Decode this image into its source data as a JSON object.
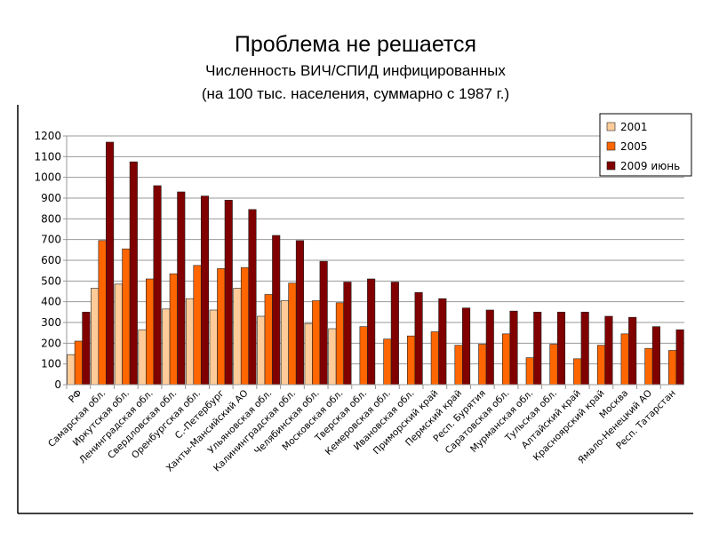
{
  "chart_data": {
    "type": "bar",
    "title": "Проблема не решается",
    "subtitle_line1": "Численность ВИЧ/СПИД инфицированных",
    "subtitle_line2": "(на 100 тыс. населения, суммарно с 1987 г.)",
    "xlabel": "",
    "ylabel": "",
    "ylim": [
      0,
      1200
    ],
    "yticks": [
      0,
      100,
      200,
      300,
      400,
      500,
      600,
      700,
      800,
      900,
      1000,
      1100,
      1200
    ],
    "grid": true,
    "legend_position": "top-right",
    "categories": [
      "РФ",
      "Самарская обл.",
      "Иркутская обл.",
      "Ленинградская обл.",
      "Свердловская обл.",
      "Оренбургская обл.",
      "С.-Петербург",
      "Ханты-Мансийский АО",
      "Ульяновская обл.",
      "Калининградская обл.",
      "Челябинская обл.",
      "Московская обл.",
      "Тверская обл.",
      "Кемеровская обл.",
      "Ивановская обл.",
      "Приморский край",
      "Пермский край",
      "Респ. Бурятия",
      "Саратовская обл.",
      "Мурманская обл.",
      "Тульская обл.",
      "Алтайский край",
      "Красноярский край",
      "Москва",
      "Ямало-Ненецкий АО",
      "Респ. Татарстан"
    ],
    "series": [
      {
        "name": "2001",
        "color": "#ffcc99",
        "values": [
          145,
          465,
          485,
          265,
          365,
          415,
          360,
          465,
          330,
          405,
          295,
          270,
          null,
          null,
          null,
          null,
          null,
          null,
          null,
          null,
          null,
          null,
          null,
          null,
          null,
          null
        ]
      },
      {
        "name": "2005",
        "color": "#ff6600",
        "values": [
          210,
          695,
          655,
          510,
          535,
          575,
          560,
          565,
          435,
          490,
          405,
          395,
          280,
          220,
          235,
          255,
          190,
          195,
          245,
          130,
          195,
          125,
          190,
          245,
          175,
          165
        ]
      },
      {
        "name": "2009 июнь",
        "color": "#800000",
        "values": [
          350,
          1170,
          1075,
          960,
          930,
          910,
          890,
          845,
          720,
          695,
          595,
          495,
          510,
          495,
          445,
          415,
          370,
          360,
          355,
          350,
          350,
          350,
          330,
          325,
          280,
          265
        ]
      }
    ]
  }
}
